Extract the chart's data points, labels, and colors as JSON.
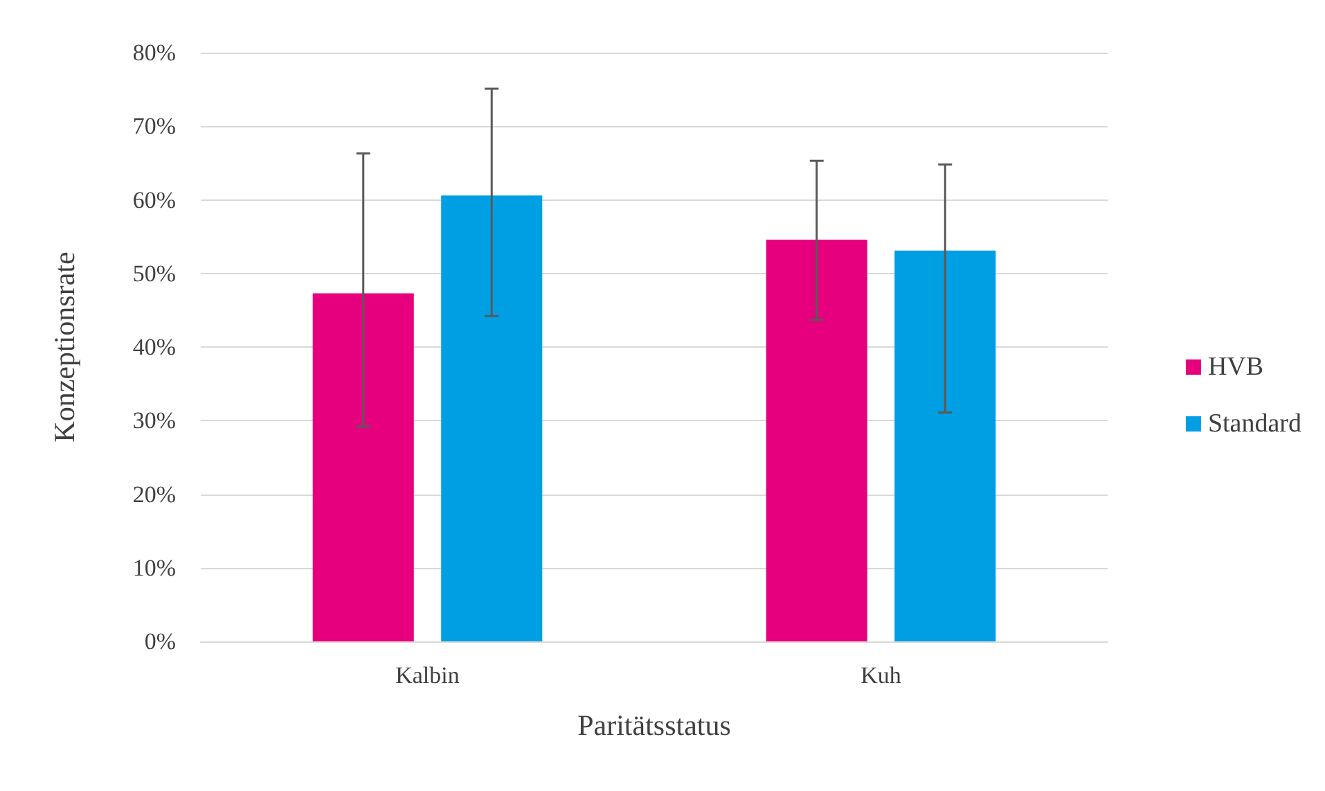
{
  "chart_data": {
    "type": "bar",
    "xlabel": "Paritätsstatus",
    "ylabel": "Konzeptionsrate",
    "categories": [
      "Kalbin",
      "Kuh"
    ],
    "series": [
      {
        "name": "HVB",
        "color": "#e6007e",
        "values": [
          47.3,
          54.6
        ],
        "errors": [
          [
            29.2,
            66.3
          ],
          [
            43.7,
            65.3
          ]
        ]
      },
      {
        "name": "Standard",
        "color": "#009fe3",
        "values": [
          60.6,
          53.1
        ],
        "errors": [
          [
            44.2,
            75.1
          ],
          [
            31.1,
            64.8
          ]
        ]
      }
    ],
    "ylim": [
      0,
      80
    ],
    "yticks": [
      {
        "value": 0,
        "label": "0%"
      },
      {
        "value": 10,
        "label": "10%"
      },
      {
        "value": 20,
        "label": "20%"
      },
      {
        "value": 30,
        "label": "30%"
      },
      {
        "value": 40,
        "label": "40%"
      },
      {
        "value": 50,
        "label": "50%"
      },
      {
        "value": 60,
        "label": "60%"
      },
      {
        "value": 70,
        "label": "70%"
      },
      {
        "value": 80,
        "label": "80%"
      }
    ],
    "grid": "y",
    "legend": "right"
  }
}
